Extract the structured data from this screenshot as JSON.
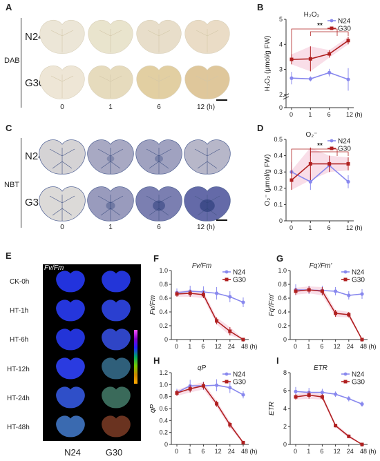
{
  "panels": {
    "A": "A",
    "B": "B",
    "C": "C",
    "D": "D",
    "E": "E",
    "F": "F",
    "G": "G",
    "H": "H",
    "I": "I"
  },
  "panel_A": {
    "rows": [
      "N24",
      "G30"
    ],
    "side": "DAB",
    "times": [
      "0",
      "1",
      "6",
      "12 (h)"
    ],
    "leaves": {
      "N24": [
        "#ece6d7",
        "#e9e4cd",
        "#e8deca",
        "#eadcc6"
      ],
      "G30": [
        "#eee6d6",
        "#e6dbbd",
        "#e2cfa2",
        "#dfc79b"
      ]
    }
  },
  "panel_C": {
    "rows": [
      "N24",
      "G30"
    ],
    "side": "NBT",
    "times": [
      "0",
      "1",
      "6",
      "12 (h)"
    ],
    "stain": {
      "N24": [
        0.15,
        0.45,
        0.5,
        0.35
      ],
      "G30": [
        0.1,
        0.55,
        0.75,
        0.9
      ]
    }
  },
  "panel_E": {
    "title": "Fv/Fm",
    "rows": [
      "CK-0h",
      "HT-1h",
      "HT-6h",
      "HT-12h",
      "HT-24h",
      "HT-48h"
    ],
    "cols": [
      "N24",
      "G30"
    ],
    "leaf_colors": {
      "N24": [
        "#2233dd",
        "#2536dc",
        "#2334d8",
        "#2a3be0",
        "#2f4fc8",
        "#3a6ab0"
      ],
      "G30": [
        "#2335d8",
        "#2a3fd0",
        "#2f45c6",
        "#2f5f7a",
        "#3a6a5a",
        "#6a3320"
      ]
    },
    "scale_colors": [
      "#ff55ff",
      "#8800cc",
      "#2222ff",
      "#00aa66",
      "#77cc00",
      "#cc8800",
      "#ffaa00"
    ]
  },
  "charts": [
    {
      "id": "B",
      "type": "line",
      "title": "H₂O₂",
      "ylabel": "H₂O₂ (μmol/g FW)",
      "x": [
        "0",
        "1",
        "6",
        "12 (h)"
      ],
      "ylim": [
        0,
        5
      ],
      "ybreak": [
        0,
        2
      ],
      "yticks": [
        0,
        2,
        3,
        4,
        5
      ],
      "series": [
        {
          "name": "N24",
          "color": "#8888ee",
          "values": [
            2.65,
            2.62,
            2.87,
            2.6
          ],
          "err": [
            0.25,
            0.1,
            0.15,
            0.45
          ]
        },
        {
          "name": "G30",
          "color": "#b02020",
          "values": [
            3.4,
            3.42,
            3.62,
            4.15
          ],
          "err": [
            0.2,
            0.5,
            0.15,
            0.15
          ]
        }
      ],
      "sig": "**",
      "legend": "top-right"
    },
    {
      "id": "D",
      "type": "line",
      "title": "O₂⁻",
      "ylabel": "O₂⁻ (μmol/g FW)",
      "x": [
        "0",
        "1",
        "6",
        "12 (h)"
      ],
      "ylim": [
        0,
        0.5
      ],
      "yticks": [
        0,
        0.1,
        0.2,
        0.3,
        0.4,
        0.5
      ],
      "series": [
        {
          "name": "N24",
          "color": "#8888ee",
          "values": [
            0.3,
            0.24,
            0.34,
            0.24
          ],
          "err": [
            0.06,
            0.05,
            0.04,
            0.04
          ]
        },
        {
          "name": "G30",
          "color": "#b02020",
          "values": [
            0.25,
            0.35,
            0.35,
            0.35
          ],
          "err": [
            0.06,
            0.1,
            0.05,
            0.04
          ]
        }
      ],
      "sig": "**",
      "legend": "top-right"
    },
    {
      "id": "F",
      "type": "line",
      "title": "Fv/Fm",
      "ylabel": "Fv/Fm",
      "x": [
        "0",
        "1",
        "6",
        "12",
        "24",
        "48 (h)"
      ],
      "ylim": [
        0,
        1
      ],
      "yticks": [
        0,
        0.2,
        0.4,
        0.6,
        0.8,
        1.0
      ],
      "series": [
        {
          "name": "N24",
          "color": "#8888ee",
          "values": [
            0.68,
            0.7,
            0.69,
            0.67,
            0.62,
            0.54
          ],
          "err": [
            0.06,
            0.08,
            0.08,
            0.09,
            0.08,
            0.07
          ]
        },
        {
          "name": "G30",
          "color": "#b02020",
          "values": [
            0.66,
            0.67,
            0.65,
            0.27,
            0.12,
            0.0
          ],
          "err": [
            0.04,
            0.05,
            0.05,
            0.05,
            0.06,
            0.01
          ]
        }
      ],
      "legend": "top-right"
    },
    {
      "id": "G",
      "type": "line",
      "title": "Fq'/Fm'",
      "ylabel": "Fq'/Fm'",
      "x": [
        "0",
        "1",
        "6",
        "12",
        "24",
        "48 (h)"
      ],
      "ylim": [
        0,
        1
      ],
      "yticks": [
        0,
        0.2,
        0.4,
        0.6,
        0.8,
        1.0
      ],
      "series": [
        {
          "name": "N24",
          "color": "#8888ee",
          "values": [
            0.72,
            0.72,
            0.71,
            0.7,
            0.64,
            0.66
          ],
          "err": [
            0.08,
            0.06,
            0.07,
            0.06,
            0.06,
            0.07
          ]
        },
        {
          "name": "G30",
          "color": "#b02020",
          "values": [
            0.7,
            0.72,
            0.7,
            0.38,
            0.36,
            0.0
          ],
          "err": [
            0.05,
            0.05,
            0.06,
            0.05,
            0.04,
            0.01
          ]
        }
      ],
      "legend": "top-right"
    },
    {
      "id": "H",
      "type": "line",
      "title": "qP",
      "ylabel": "qP",
      "x": [
        "0",
        "1",
        "6",
        "12",
        "24",
        "48 (h)"
      ],
      "ylim": [
        0,
        1.2
      ],
      "yticks": [
        0,
        0.2,
        0.4,
        0.6,
        0.8,
        1.0,
        1.2
      ],
      "series": [
        {
          "name": "N24",
          "color": "#8888ee",
          "values": [
            0.87,
            0.98,
            0.98,
            0.99,
            0.95,
            0.83
          ],
          "err": [
            0.06,
            0.1,
            0.07,
            0.1,
            0.09,
            0.06
          ]
        },
        {
          "name": "G30",
          "color": "#b02020",
          "values": [
            0.86,
            0.93,
            0.98,
            0.68,
            0.33,
            0.03
          ],
          "err": [
            0.05,
            0.06,
            0.06,
            0.05,
            0.05,
            0.02
          ]
        }
      ],
      "legend": "top-right"
    },
    {
      "id": "I",
      "type": "line",
      "title": "ETR",
      "ylabel": "ETR",
      "x": [
        "0",
        "1",
        "6",
        "12",
        "24",
        "48 (h)"
      ],
      "ylim": [
        0,
        8
      ],
      "yticks": [
        0,
        2,
        4,
        6,
        8
      ],
      "series": [
        {
          "name": "N24",
          "color": "#8888ee",
          "values": [
            5.9,
            5.8,
            5.8,
            5.6,
            5.1,
            4.5
          ],
          "err": [
            0.5,
            0.5,
            0.4,
            0.3,
            0.3,
            0.3
          ]
        },
        {
          "name": "G30",
          "color": "#b02020",
          "values": [
            5.3,
            5.5,
            5.3,
            2.1,
            0.9,
            0.0
          ],
          "err": [
            0.3,
            0.4,
            0.3,
            0.2,
            0.2,
            0.05
          ]
        }
      ],
      "legend": "top-right"
    }
  ]
}
